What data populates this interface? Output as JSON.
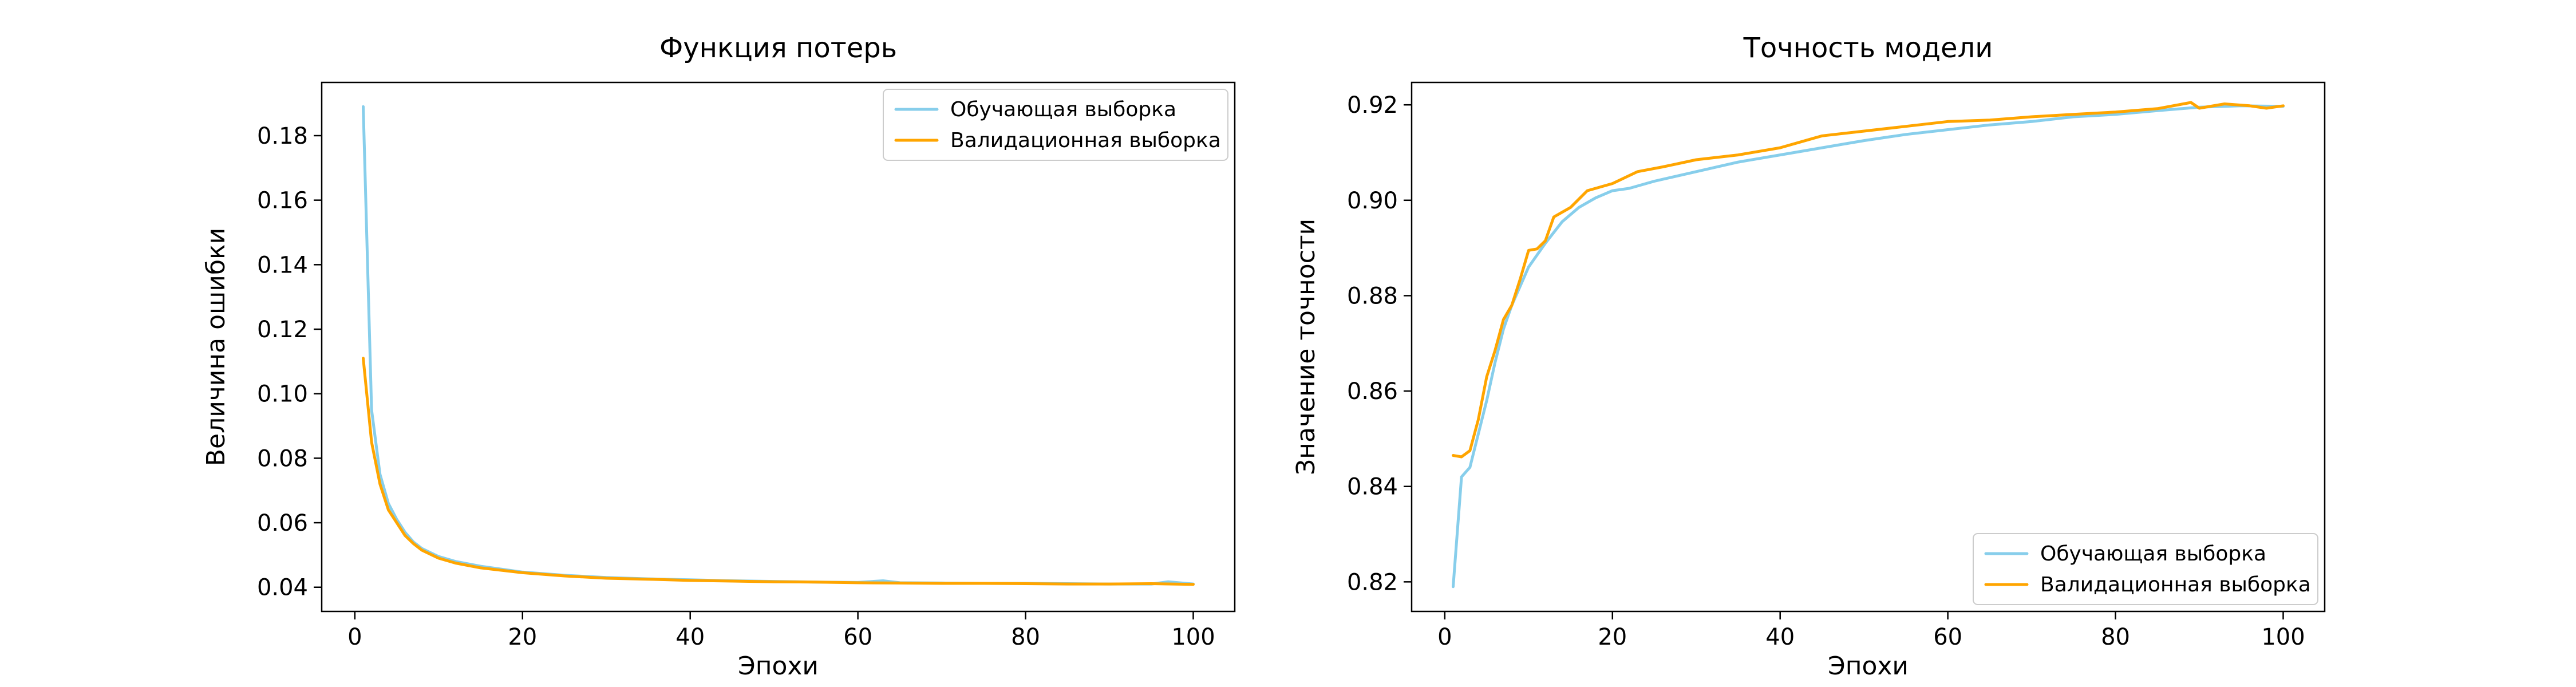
{
  "colors": {
    "train": "#87ceeb",
    "val": "#ffa500"
  },
  "chart_data": [
    {
      "type": "line",
      "title": "Функция потерь",
      "xlabel": "Эпохи",
      "ylabel": "Величина ошибки",
      "xlim": [
        -3.95,
        104.95
      ],
      "ylim": [
        0.0325,
        0.1965
      ],
      "xticks": [
        0,
        20,
        40,
        60,
        80,
        100
      ],
      "yticks": [
        0.04,
        0.06,
        0.08,
        0.1,
        0.12,
        0.14,
        0.16,
        0.18
      ],
      "ytick_labels": [
        "0.04",
        "0.06",
        "0.08",
        "0.10",
        "0.12",
        "0.14",
        "0.16",
        "0.18"
      ],
      "legend_position": "top-right",
      "series": [
        {
          "name": "Обучающая выборка",
          "color": "#87ceeb",
          "points": [
            [
              1,
              0.189
            ],
            [
              2,
              0.095
            ],
            [
              3,
              0.075
            ],
            [
              4,
              0.066
            ],
            [
              5,
              0.061
            ],
            [
              6,
              0.057
            ],
            [
              7,
              0.054
            ],
            [
              8,
              0.052
            ],
            [
              10,
              0.0495
            ],
            [
              12,
              0.048
            ],
            [
              15,
              0.0465
            ],
            [
              20,
              0.0447
            ],
            [
              25,
              0.0437
            ],
            [
              30,
              0.043
            ],
            [
              35,
              0.0426
            ],
            [
              40,
              0.0423
            ],
            [
              45,
              0.042
            ],
            [
              50,
              0.0418
            ],
            [
              55,
              0.0416
            ],
            [
              60,
              0.0415
            ],
            [
              63,
              0.042
            ],
            [
              65,
              0.0414
            ],
            [
              70,
              0.0413
            ],
            [
              75,
              0.0412
            ],
            [
              80,
              0.0412
            ],
            [
              85,
              0.0411
            ],
            [
              90,
              0.041
            ],
            [
              95,
              0.041
            ],
            [
              97,
              0.0417
            ],
            [
              100,
              0.041
            ]
          ]
        },
        {
          "name": "Валидационная выборка",
          "color": "#ffa500",
          "points": [
            [
              1,
              0.111
            ],
            [
              2,
              0.085
            ],
            [
              3,
              0.072
            ],
            [
              4,
              0.064
            ],
            [
              5,
              0.06
            ],
            [
              6,
              0.056
            ],
            [
              7,
              0.0535
            ],
            [
              8,
              0.0515
            ],
            [
              10,
              0.049
            ],
            [
              12,
              0.0475
            ],
            [
              15,
              0.046
            ],
            [
              20,
              0.0445
            ],
            [
              25,
              0.0435
            ],
            [
              30,
              0.0428
            ],
            [
              35,
              0.0425
            ],
            [
              40,
              0.0421
            ],
            [
              45,
              0.0419
            ],
            [
              50,
              0.0417
            ],
            [
              55,
              0.0416
            ],
            [
              60,
              0.0414
            ],
            [
              65,
              0.0413
            ],
            [
              70,
              0.0412
            ],
            [
              75,
              0.0412
            ],
            [
              80,
              0.0411
            ],
            [
              85,
              0.041
            ],
            [
              90,
              0.041
            ],
            [
              95,
              0.0411
            ],
            [
              100,
              0.0409
            ]
          ]
        }
      ]
    },
    {
      "type": "line",
      "title": "Точность модели",
      "xlabel": "Эпохи",
      "ylabel": "Значение точности",
      "xlim": [
        -3.95,
        104.95
      ],
      "ylim": [
        0.8138,
        0.9247
      ],
      "xticks": [
        0,
        20,
        40,
        60,
        80,
        100
      ],
      "yticks": [
        0.82,
        0.84,
        0.86,
        0.88,
        0.9,
        0.92
      ],
      "ytick_labels": [
        "0.82",
        "0.84",
        "0.86",
        "0.88",
        "0.90",
        "0.92"
      ],
      "legend_position": "bottom-right",
      "series": [
        {
          "name": "Обучающая выборка",
          "color": "#87ceeb",
          "points": [
            [
              1,
              0.819
            ],
            [
              2,
              0.842
            ],
            [
              3,
              0.844
            ],
            [
              4,
              0.851
            ],
            [
              5,
              0.858
            ],
            [
              6,
              0.866
            ],
            [
              7,
              0.873
            ],
            [
              8,
              0.878
            ],
            [
              10,
              0.886
            ],
            [
              12,
              0.891
            ],
            [
              14,
              0.8955
            ],
            [
              16,
              0.8985
            ],
            [
              18,
              0.9005
            ],
            [
              20,
              0.902
            ],
            [
              22,
              0.9025
            ],
            [
              25,
              0.904
            ],
            [
              30,
              0.906
            ],
            [
              35,
              0.908
            ],
            [
              40,
              0.9095
            ],
            [
              45,
              0.911
            ],
            [
              50,
              0.9125
            ],
            [
              55,
              0.9138
            ],
            [
              60,
              0.9148
            ],
            [
              65,
              0.9158
            ],
            [
              70,
              0.9165
            ],
            [
              75,
              0.9175
            ],
            [
              80,
              0.918
            ],
            [
              85,
              0.9188
            ],
            [
              90,
              0.9195
            ],
            [
              95,
              0.9198
            ],
            [
              100,
              0.9197
            ]
          ]
        },
        {
          "name": "Валидационная выборка",
          "color": "#ffa500",
          "points": [
            [
              1,
              0.8465
            ],
            [
              2,
              0.8462
            ],
            [
              3,
              0.8475
            ],
            [
              4,
              0.854
            ],
            [
              5,
              0.863
            ],
            [
              6,
              0.8685
            ],
            [
              7,
              0.875
            ],
            [
              8,
              0.878
            ],
            [
              9,
              0.8835
            ],
            [
              10,
              0.8895
            ],
            [
              11,
              0.8898
            ],
            [
              12,
              0.8915
            ],
            [
              13,
              0.8965
            ],
            [
              15,
              0.8985
            ],
            [
              17,
              0.902
            ],
            [
              20,
              0.9035
            ],
            [
              23,
              0.906
            ],
            [
              26,
              0.907
            ],
            [
              30,
              0.9085
            ],
            [
              35,
              0.9095
            ],
            [
              40,
              0.911
            ],
            [
              45,
              0.9135
            ],
            [
              50,
              0.9145
            ],
            [
              55,
              0.9155
            ],
            [
              60,
              0.9165
            ],
            [
              65,
              0.9168
            ],
            [
              70,
              0.9175
            ],
            [
              75,
              0.918
            ],
            [
              80,
              0.9185
            ],
            [
              85,
              0.9192
            ],
            [
              89,
              0.9205
            ],
            [
              90,
              0.9193
            ],
            [
              93,
              0.9202
            ],
            [
              96,
              0.9198
            ],
            [
              98,
              0.9193
            ],
            [
              100,
              0.9198
            ]
          ]
        }
      ]
    }
  ]
}
